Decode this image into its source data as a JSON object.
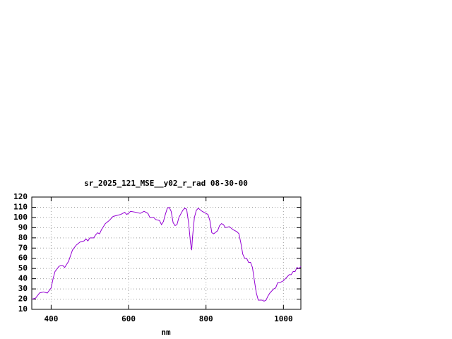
{
  "chart_data": {
    "type": "line",
    "title": "sr_2025_121_MSE__y02_r_rad 08-30-00",
    "x_label": "nm",
    "xlim": [
      350,
      1045
    ],
    "xticks": [
      400,
      600,
      800,
      1000
    ],
    "ylim": [
      10,
      120
    ],
    "yticks": [
      10,
      20,
      30,
      40,
      50,
      60,
      70,
      80,
      90,
      100,
      110,
      120
    ],
    "grid": true,
    "series": [
      {
        "color": "#9400d3",
        "x": [
          350,
          360,
          370,
          380,
          390,
          400,
          405,
          410,
          420,
          425,
          430,
          435,
          445,
          455,
          465,
          475,
          485,
          490,
          495,
          500,
          510,
          515,
          520,
          525,
          530,
          540,
          550,
          560,
          570,
          580,
          590,
          595,
          600,
          605,
          620,
          630,
          640,
          650,
          655,
          665,
          670,
          680,
          685,
          690,
          695,
          700,
          705,
          710,
          715,
          720,
          725,
          730,
          740,
          745,
          750,
          755,
          760,
          763,
          765,
          770,
          775,
          780,
          790,
          800,
          805,
          810,
          815,
          820,
          830,
          835,
          840,
          845,
          850,
          860,
          870,
          880,
          885,
          890,
          895,
          900,
          905,
          910,
          915,
          920,
          925,
          930,
          935,
          945,
          950,
          955,
          960,
          965,
          975,
          980,
          985,
          990,
          995,
          1000,
          1010,
          1015,
          1020,
          1025,
          1030,
          1035,
          1040,
          1045
        ],
        "values": [
          20,
          21,
          26,
          27,
          26,
          31,
          40,
          47,
          52,
          53,
          53,
          51,
          57,
          68,
          73,
          76,
          77,
          79,
          77,
          80,
          80,
          83,
          85,
          84,
          88,
          94,
          97,
          101,
          102,
          103,
          105,
          103,
          104,
          106,
          105,
          104,
          106,
          104,
          100,
          100,
          98,
          97,
          93,
          96,
          103,
          109,
          110,
          106,
          95,
          92,
          93,
          100,
          107,
          109,
          108,
          95,
          75,
          68,
          80,
          100,
          107,
          109,
          106,
          104,
          103,
          97,
          85,
          84,
          87,
          92,
          94,
          93,
          90,
          91,
          88,
          86,
          84,
          75,
          64,
          60,
          60,
          56,
          56,
          51,
          38,
          26,
          19,
          19,
          18,
          19,
          23,
          26,
          30,
          31,
          36,
          36,
          37,
          38,
          42,
          44,
          44,
          47,
          47,
          51,
          50,
          52
        ]
      }
    ]
  }
}
